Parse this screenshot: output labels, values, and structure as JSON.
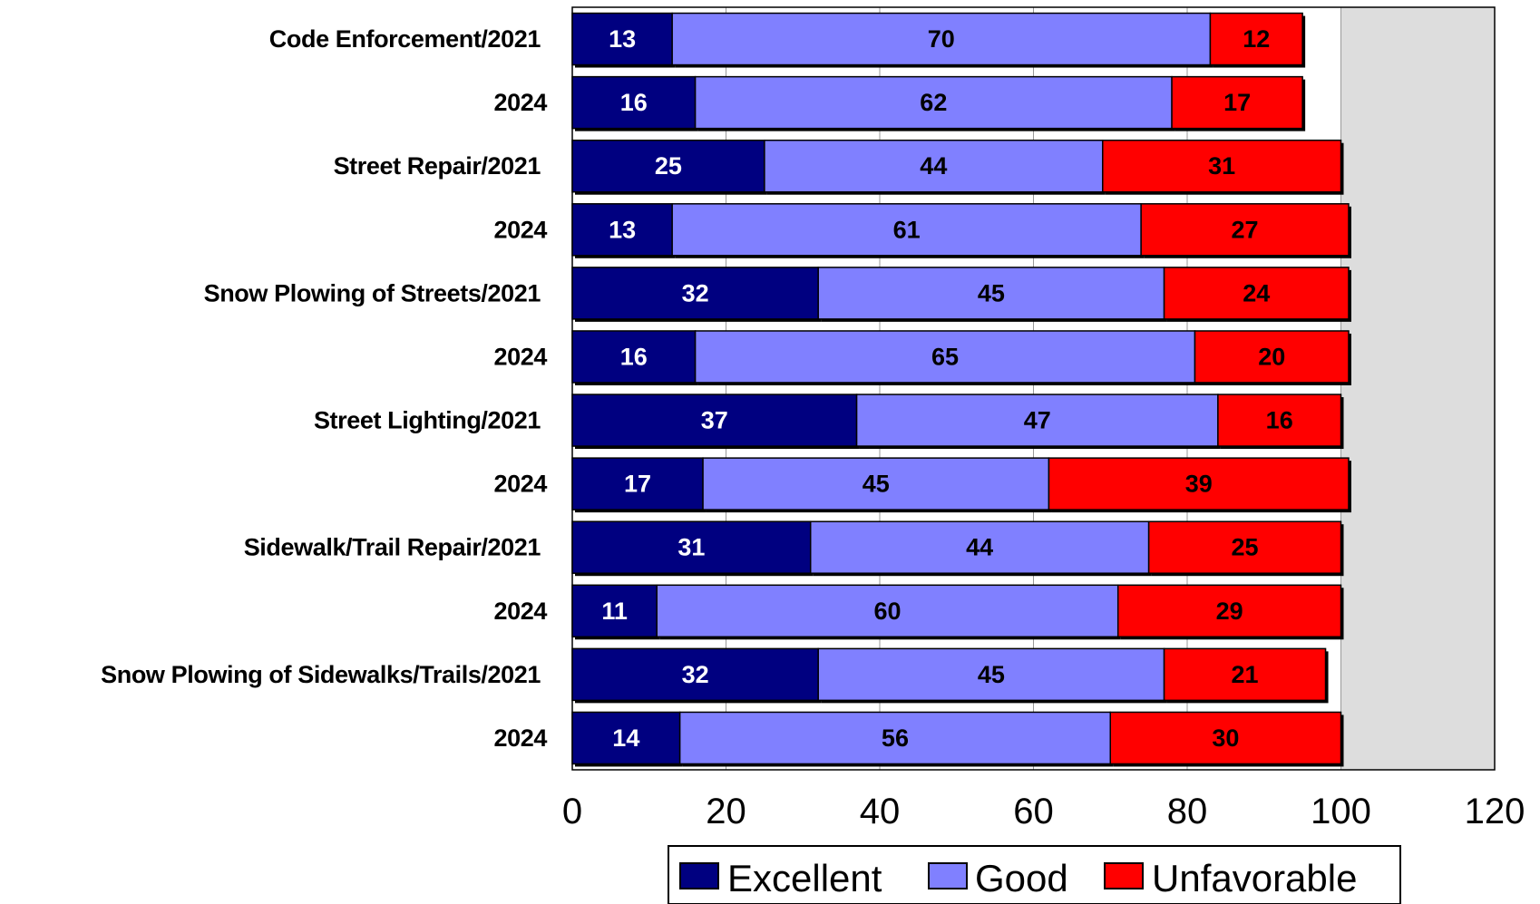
{
  "chart_data": {
    "type": "bar",
    "orientation": "horizontal",
    "stacked": true,
    "categories": [
      "Code Enforcement/2021",
      "2024",
      "Street Repair/2021",
      "2024",
      "Snow Plowing of Streets/2021",
      "2024",
      "Street Lighting/2021",
      "2024",
      "Sidewalk/Trail Repair/2021",
      "2024",
      "Snow Plowing of Sidewalks/Trails/2021",
      "2024"
    ],
    "series": [
      {
        "name": "Excellent",
        "color": "#000080",
        "label_color": "#ffffff",
        "values": [
          13,
          16,
          25,
          13,
          32,
          16,
          37,
          17,
          31,
          11,
          32,
          14
        ]
      },
      {
        "name": "Good",
        "color": "#8080ff",
        "label_color": "#000000",
        "values": [
          70,
          62,
          44,
          61,
          45,
          65,
          47,
          45,
          44,
          60,
          45,
          56
        ]
      },
      {
        "name": "Unfavorable",
        "color": "#ff0000",
        "label_color": "#000000",
        "values": [
          12,
          17,
          31,
          27,
          24,
          20,
          16,
          39,
          25,
          29,
          21,
          30
        ]
      }
    ],
    "xlim": [
      0,
      120
    ],
    "xticks": [
      "0",
      "20",
      "40",
      "60",
      "80",
      "100",
      "120"
    ],
    "plot_area_colors": {
      "primary": "#ffffff",
      "secondary": "#dddddd",
      "secondary_from": 100
    },
    "gridlines": "vertical",
    "legend_position": "bottom"
  }
}
